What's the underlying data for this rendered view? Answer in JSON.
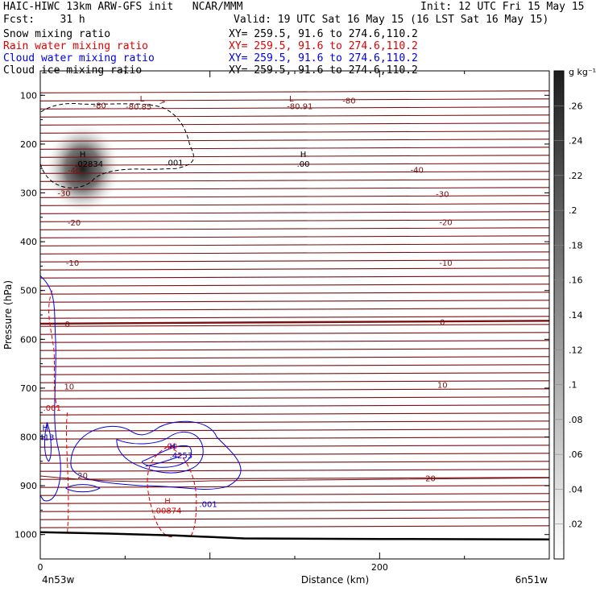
{
  "header": {
    "title_left": "HAIC-HIWC 13km ARW-GFS init   NCAR/MMM",
    "init": "Init: 12 UTC Fri 15 May 15",
    "fcst": "Fcst:    31 h",
    "valid": "Valid: 19 UTC Sat 16 May 15 (16 LST Sat 16 May 15)",
    "fields": [
      {
        "name": "Snow mixing ratio",
        "xy": "XY= 259.5, 91.6 to 274.6,110.2",
        "color": "#000000"
      },
      {
        "name": "Rain water mixing ratio",
        "xy": "XY= 259.5, 91.6 to 274.6,110.2",
        "color": "#e00000"
      },
      {
        "name": "Cloud water mixing ratio",
        "xy": "XY= 259.5, 91.6 to 274.6,110.2",
        "color": "#0000e0"
      },
      {
        "name": "Cloud ice mixing ratio",
        "xy": "XY= 259.5, 91.6 to 274.6,110.2",
        "color": "#000000"
      }
    ]
  },
  "chart_data": {
    "type": "contour",
    "xlabel": "Distance (km)",
    "ylabel": "Pressure (hPa)",
    "xlim": [
      0,
      300
    ],
    "ylim": [
      1050,
      50
    ],
    "x_ticks": [
      0,
      200
    ],
    "y_ticks": [
      100,
      200,
      300,
      400,
      500,
      600,
      700,
      800,
      900,
      1000
    ],
    "x_endpoint_labels": {
      "left": "4n53w",
      "right": "6n51w"
    },
    "colorbar": {
      "unit": "g kg⁻¹",
      "ticks": [
        ".02",
        ".04",
        ".06",
        ".08",
        ".1",
        ".12",
        ".14",
        ".16",
        ".18",
        ".2",
        ".22",
        ".24",
        ".26"
      ],
      "range": [
        0,
        0.28
      ]
    },
    "temperature_isotherms": {
      "color": "#7a1010",
      "labels": [
        {
          "text": "-80",
          "x": 35,
          "p": 120
        },
        {
          "text": "-80.85",
          "x": 58,
          "p": 123
        },
        {
          "text": "-80",
          "x": 182,
          "p": 110
        },
        {
          "text": "-80.91",
          "x": 153,
          "p": 122
        },
        {
          "text": "-40",
          "x": 20,
          "p": 253
        },
        {
          "text": "-40",
          "x": 222,
          "p": 252
        },
        {
          "text": "-30",
          "x": 14,
          "p": 300
        },
        {
          "text": "-30",
          "x": 237,
          "p": 302
        },
        {
          "text": "-20",
          "x": 20,
          "p": 360
        },
        {
          "text": "-20",
          "x": 239,
          "p": 359
        },
        {
          "text": "-10",
          "x": 19,
          "p": 443
        },
        {
          "text": "-10",
          "x": 239,
          "p": 443
        },
        {
          "text": "0",
          "x": 16,
          "p": 568
        },
        {
          "text": "0",
          "x": 237,
          "p": 564
        },
        {
          "text": "10",
          "x": 17,
          "p": 696
        },
        {
          "text": "10",
          "x": 237,
          "p": 693
        },
        {
          "text": "20",
          "x": 25,
          "p": 878
        },
        {
          "text": "20",
          "x": 230,
          "p": 884
        }
      ],
      "extrema": [
        {
          "kind": "L",
          "x": 60,
          "p": 106
        },
        {
          "kind": "L",
          "x": 148,
          "p": 106
        }
      ]
    },
    "snow": {
      "color": "#000000",
      "max": {
        "kind": "H",
        "value": ".02834",
        "x": 25,
        "p": 240
      },
      "contour_label": ".001",
      "contour_label_pos": {
        "x": 79,
        "p": 237
      },
      "second_max": {
        "kind": "H",
        "value": ".00",
        "x": 155,
        "p": 240
      }
    },
    "rain": {
      "color": "#e00000",
      "labels": [
        {
          "text": ".001",
          "x": 7,
          "p": 740
        },
        {
          "text": ".00",
          "x": 77,
          "p": 818
        },
        {
          "text": ".00874",
          "x": 75,
          "p": 950
        }
      ],
      "extrema": [
        {
          "kind": "H",
          "x": 75,
          "p": 930
        }
      ]
    },
    "cloud_water": {
      "color": "#0000e0",
      "labels": [
        {
          "text": ".413",
          "x": 3,
          "p": 800
        },
        {
          "text": ".4253",
          "x": 83,
          "p": 837
        },
        {
          "text": ".001",
          "x": 99,
          "p": 937
        }
      ],
      "extrema": [
        {
          "kind": "H",
          "x": 3,
          "p": 780
        },
        {
          "kind": "H",
          "x": 78,
          "p": 818
        }
      ]
    },
    "terrain_pressure": [
      {
        "x": 0,
        "p": 995
      },
      {
        "x": 40,
        "p": 998
      },
      {
        "x": 80,
        "p": 1002
      },
      {
        "x": 120,
        "p": 1008
      },
      {
        "x": 200,
        "p": 1009
      },
      {
        "x": 300,
        "p": 1010
      }
    ]
  }
}
